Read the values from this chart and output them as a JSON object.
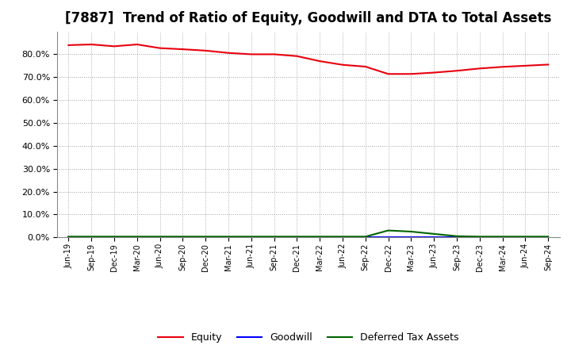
{
  "title": "[7887]  Trend of Ratio of Equity, Goodwill and DTA to Total Assets",
  "x_labels": [
    "Jun-19",
    "Sep-19",
    "Dec-19",
    "Mar-20",
    "Jun-20",
    "Sep-20",
    "Dec-20",
    "Mar-21",
    "Jun-21",
    "Sep-21",
    "Dec-21",
    "Mar-22",
    "Jun-22",
    "Sep-22",
    "Dec-22",
    "Mar-23",
    "Jun-23",
    "Sep-23",
    "Dec-23",
    "Mar-24",
    "Jun-24",
    "Sep-24"
  ],
  "equity": [
    0.84,
    0.843,
    0.835,
    0.843,
    0.827,
    0.822,
    0.816,
    0.806,
    0.8,
    0.8,
    0.792,
    0.77,
    0.754,
    0.746,
    0.714,
    0.714,
    0.72,
    0.728,
    0.738,
    0.745,
    0.75,
    0.755
  ],
  "goodwill": [
    0.0,
    0.0,
    0.0,
    0.0,
    0.0,
    0.0,
    0.0,
    0.0,
    0.0,
    0.0,
    0.0,
    0.0,
    0.0,
    0.0,
    0.0,
    0.0,
    0.0,
    0.0,
    0.0,
    0.0,
    0.0,
    0.0
  ],
  "dta": [
    0.003,
    0.003,
    0.003,
    0.003,
    0.003,
    0.003,
    0.003,
    0.003,
    0.003,
    0.003,
    0.003,
    0.003,
    0.003,
    0.003,
    0.03,
    0.025,
    0.015,
    0.005,
    0.003,
    0.003,
    0.003,
    0.003
  ],
  "equity_color": "#e8000d",
  "goodwill_color": "#0000ff",
  "dta_color": "#006400",
  "background_color": "#ffffff",
  "grid_color": "#a0a0a0",
  "ylim": [
    0.0,
    0.9
  ],
  "yticks": [
    0.0,
    0.1,
    0.2,
    0.3,
    0.4,
    0.5,
    0.6,
    0.7,
    0.8
  ],
  "title_fontsize": 12,
  "legend_labels": [
    "Equity",
    "Goodwill",
    "Deferred Tax Assets"
  ]
}
